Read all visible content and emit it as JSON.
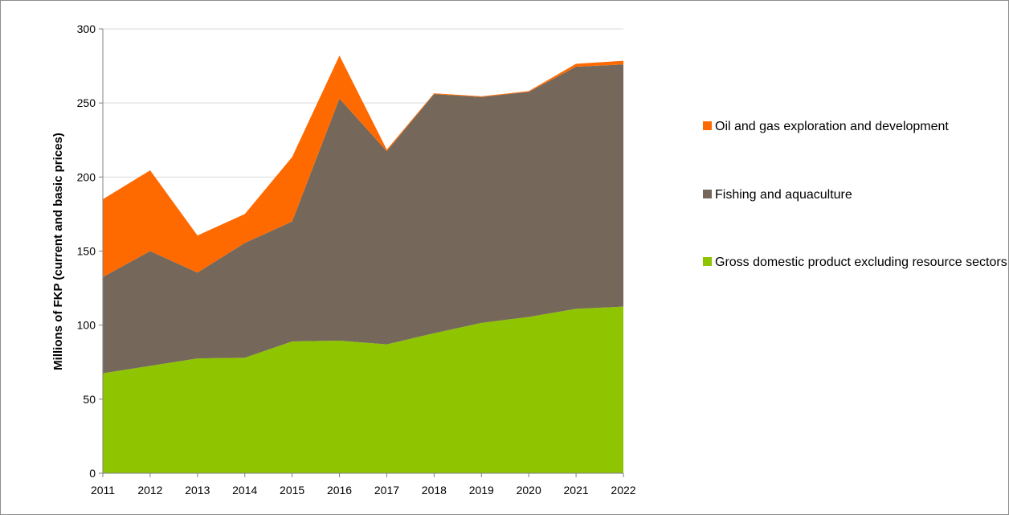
{
  "chart_data": {
    "type": "area",
    "stacked": true,
    "x": [
      "2011",
      "2012",
      "2013",
      "2014",
      "2015",
      "2016",
      "2017",
      "2018",
      "2019",
      "2020",
      "2021",
      "2022"
    ],
    "series": [
      {
        "name": "Gross domestic product excluding resource sectors",
        "color": "#8fc400",
        "values": [
          67.5,
          72.5,
          77.5,
          78,
          89,
          89.5,
          87,
          94.5,
          101.5,
          105.5,
          111,
          112.5
        ]
      },
      {
        "name": "Fishing and aquaculture",
        "color": "#75685b",
        "values": [
          65,
          77.5,
          58,
          77.5,
          81,
          163.5,
          130.5,
          161.5,
          152.5,
          152,
          163.5,
          163.5
        ]
      },
      {
        "name": "Oil and gas exploration and development",
        "color": "#ff6a00",
        "values": [
          52.5,
          54.5,
          25,
          19.5,
          43.5,
          29,
          1,
          0.5,
          0.5,
          0.5,
          2,
          2.5
        ]
      }
    ],
    "ylabel": "Millions of FKP (current and basic prices)",
    "ylim": [
      0,
      300
    ],
    "yticks": [
      "0",
      "50",
      "100",
      "150",
      "200",
      "250",
      "300"
    ],
    "grid": true,
    "legend_position": "right"
  }
}
